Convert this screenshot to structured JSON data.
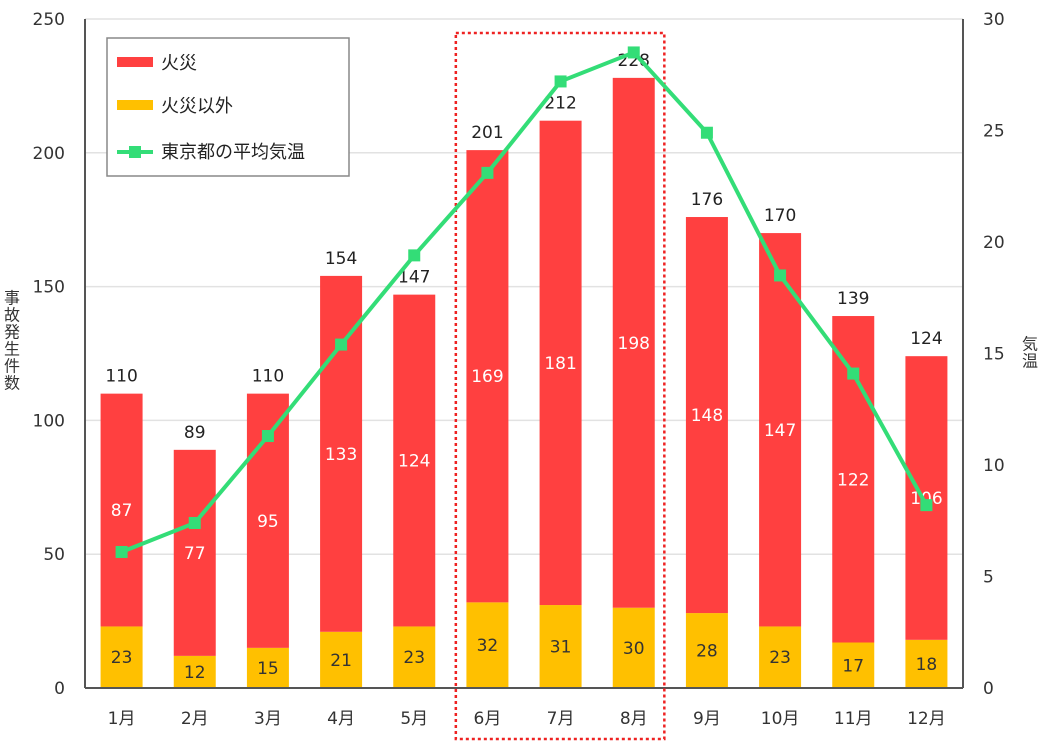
{
  "chart_data": {
    "type": "bar",
    "categories": [
      "1月",
      "2月",
      "3月",
      "4月",
      "5月",
      "6月",
      "7月",
      "8月",
      "9月",
      "10月",
      "11月",
      "12月"
    ],
    "series": [
      {
        "name": "火災",
        "values": [
          87,
          77,
          95,
          133,
          124,
          169,
          181,
          198,
          148,
          147,
          122,
          106
        ]
      },
      {
        "name": "火災以外",
        "values": [
          23,
          12,
          15,
          21,
          23,
          32,
          31,
          30,
          28,
          23,
          17,
          18
        ]
      },
      {
        "name": "東京都の平均気温",
        "values": [
          6.1,
          7.4,
          11.3,
          15.4,
          19.4,
          23.1,
          27.2,
          28.5,
          24.9,
          18.5,
          14.1,
          8.2
        ],
        "axis": "right",
        "type": "line"
      }
    ],
    "totals": [
      110,
      89,
      110,
      154,
      147,
      201,
      212,
      228,
      176,
      170,
      139,
      124
    ],
    "ylabel": "事故発生件数",
    "y2label": "気温",
    "ylim": [
      0,
      250
    ],
    "y2lim": [
      0,
      30
    ],
    "yticks": [
      0,
      50,
      100,
      150,
      200,
      250
    ],
    "y2ticks": [
      0,
      5,
      10,
      15,
      20,
      25,
      30
    ],
    "legend_position": "top-left",
    "highlight_categories": [
      "6月",
      "7月",
      "8月"
    ],
    "colors": {
      "fire": "#ff4040",
      "non_fire": "#ffc000",
      "temperature": "#33dd77",
      "highlight": "#ee2222"
    }
  }
}
